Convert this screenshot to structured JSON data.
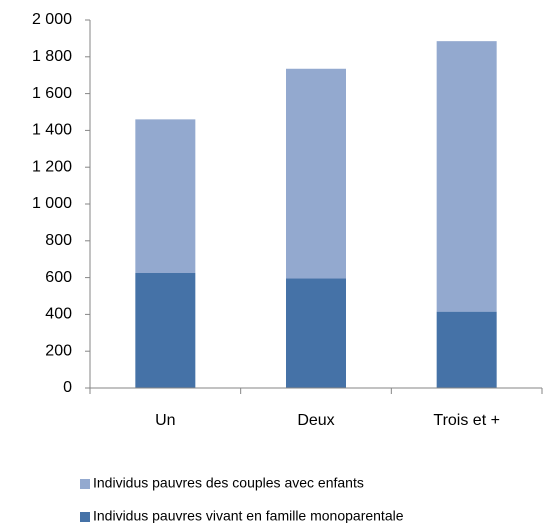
{
  "chart_data": {
    "type": "stacked_bar",
    "categories": [
      "Un",
      "Deux",
      "Trois et +"
    ],
    "series": [
      {
        "name": "Individus pauvres vivant en famille monoparentale",
        "color": "#4572a7",
        "values": [
          625,
          595,
          415
        ]
      },
      {
        "name": "Individus pauvres des couples avec enfants",
        "color": "#93a9cf",
        "values": [
          835,
          1140,
          1470
        ]
      }
    ],
    "ylim": [
      0,
      2000
    ],
    "yticks": [
      0,
      200,
      400,
      600,
      800,
      {
        "value": 1000,
        "label": "1 000"
      },
      {
        "value": 1200,
        "label": "1 200"
      },
      {
        "value": 1400,
        "label": "1 400"
      },
      {
        "value": 1600,
        "label": "1 600"
      },
      {
        "value": 1800,
        "label": "1 800"
      },
      {
        "value": 2000,
        "label": "2 000"
      }
    ],
    "grid": false
  }
}
